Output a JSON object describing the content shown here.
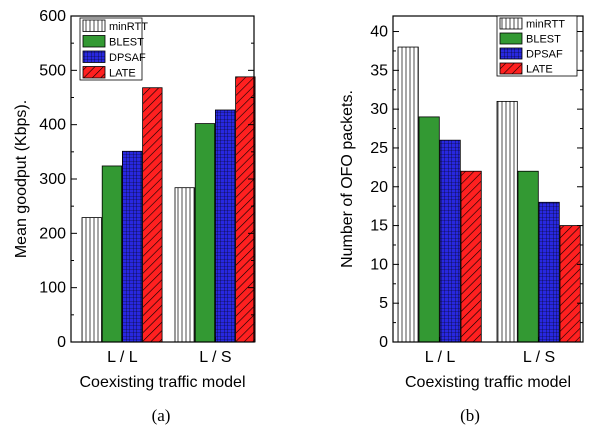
{
  "chart_data": [
    {
      "type": "bar",
      "caption": "(a)",
      "categories": [
        "L / L",
        "L / S"
      ],
      "series": [
        {
          "name": "minRTT",
          "values": [
            229,
            284
          ]
        },
        {
          "name": "BLEST",
          "values": [
            324,
            402
          ]
        },
        {
          "name": "DPSAF",
          "values": [
            351,
            427
          ]
        },
        {
          "name": "LATE",
          "values": [
            468,
            488
          ]
        }
      ],
      "xlabel": "Coexisting traffic model",
      "ylabel": "Mean goodput (Kbps).",
      "ylim": [
        0,
        600
      ],
      "yticks": [
        0,
        100,
        200,
        300,
        400,
        500,
        600
      ],
      "legend": "top-left",
      "grid": false
    },
    {
      "type": "bar",
      "caption": "(b)",
      "categories": [
        "L / L",
        "L / S"
      ],
      "series": [
        {
          "name": "minRTT",
          "values": [
            38,
            31
          ]
        },
        {
          "name": "BLEST",
          "values": [
            29,
            22
          ]
        },
        {
          "name": "DPSAF",
          "values": [
            26,
            18
          ]
        },
        {
          "name": "LATE",
          "values": [
            22,
            15
          ]
        }
      ],
      "xlabel": "Coexisting traffic model",
      "ylabel": "Number of OFO packets.",
      "ylim": [
        0,
        42
      ],
      "yticks": [
        0,
        5,
        10,
        15,
        20,
        25,
        30,
        35,
        40
      ],
      "legend": "top-right",
      "grid": false
    }
  ],
  "styles": {
    "minRTT": {
      "fill": "#ffffff",
      "pattern": "vertical-lines",
      "line": "#000000"
    },
    "BLEST": {
      "fill": "#339933",
      "pattern": "solid",
      "line": "#000000"
    },
    "DPSAF": {
      "fill": "#2828e0",
      "pattern": "grid",
      "line": "#000000"
    },
    "LATE": {
      "fill": "#ff2020",
      "pattern": "diagonal-lines",
      "line": "#000000"
    }
  }
}
